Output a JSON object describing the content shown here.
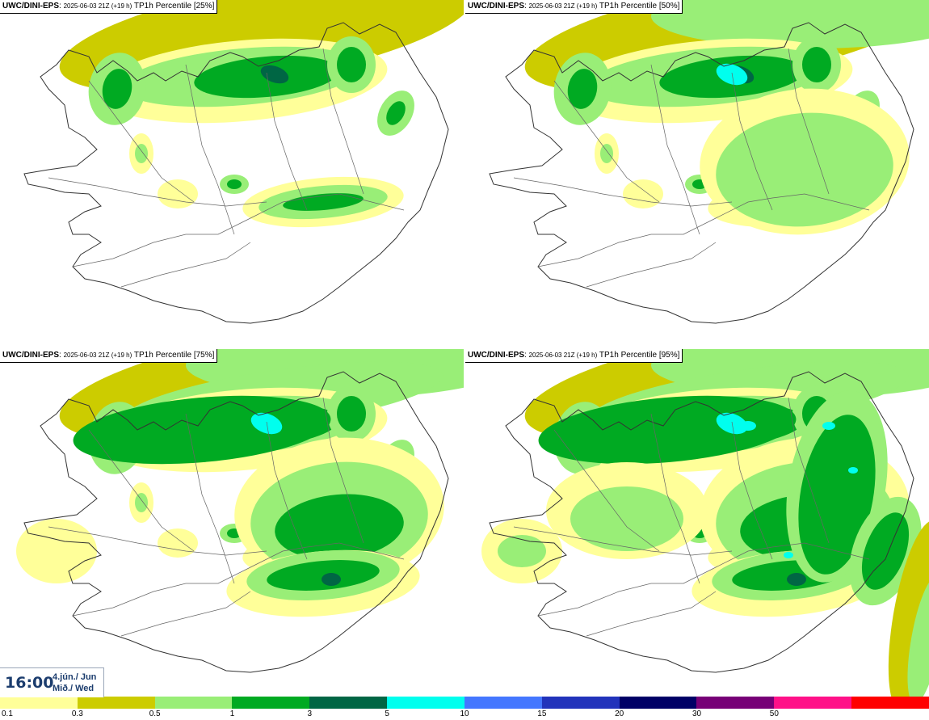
{
  "panels": [
    {
      "model": "UWC/DINI-EPS",
      "run": "2025-06-03 21Z (+19 h)",
      "field": "TP1h Percentile [25%]",
      "level": 0
    },
    {
      "model": "UWC/DINI-EPS",
      "run": "2025-06-03 21Z (+19 h)",
      "field": "TP1h Percentile [50%]",
      "level": 1
    },
    {
      "model": "UWC/DINI-EPS",
      "run": "2025-06-03 21Z (+19 h)",
      "field": "TP1h Percentile [75%]",
      "level": 2
    },
    {
      "model": "UWC/DINI-EPS",
      "run": "2025-06-03 21Z (+19 h)",
      "field": "TP1h Percentile [95%]",
      "level": 3
    }
  ],
  "valid_time": {
    "time": "16:00",
    "date_line": "4.jún./ Jun",
    "day_line": "Mið./ Wed"
  },
  "colorbar": {
    "colors": [
      "#ffff99",
      "#cccc00",
      "#99ee77",
      "#00aa22",
      "#006644",
      "#00ffee",
      "#4477ff",
      "#2233bb",
      "#000066",
      "#770077",
      "#ff1188",
      "#ff0000"
    ],
    "labels": [
      "0.1",
      "0.3",
      "0.5",
      "1",
      "3",
      "5",
      "10",
      "15",
      "20",
      "30",
      "50"
    ]
  }
}
